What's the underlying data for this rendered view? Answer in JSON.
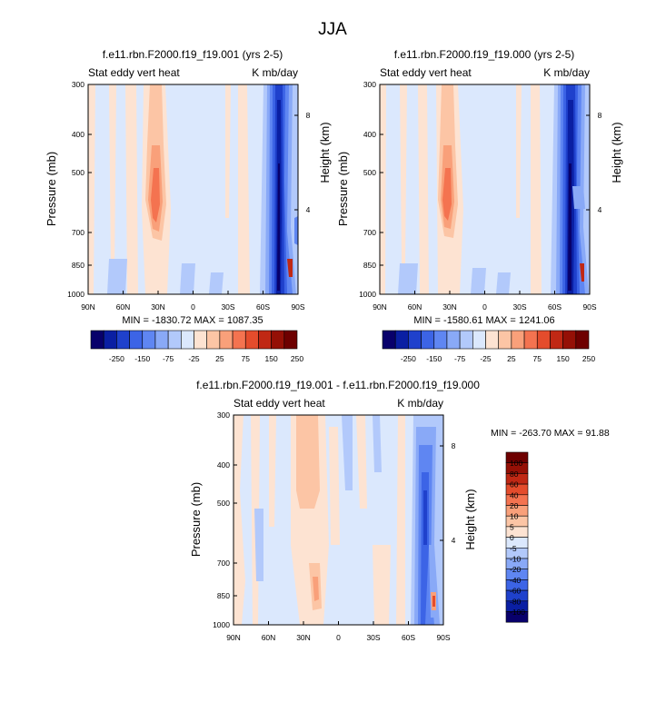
{
  "figure": {
    "title": "JJA"
  },
  "colors": {
    "abs_palette": [
      "#08006b",
      "#0a1fa3",
      "#1f41cc",
      "#3c64e6",
      "#5f86f2",
      "#89a9f7",
      "#b2c9fb",
      "#dbe8fd",
      "#fde3d2",
      "#fcc5a5",
      "#f9a07a",
      "#f47350",
      "#e44c2c",
      "#c02814",
      "#951006",
      "#6e0000"
    ],
    "diff_palette": [
      "#08006b",
      "#0a1fa3",
      "#1f41cc",
      "#3c64e6",
      "#5f86f2",
      "#89a9f7",
      "#b2c9fb",
      "#dbe8fd",
      "#fde3d2",
      "#fcc5a5",
      "#f9a07a",
      "#f47350",
      "#e44c2c",
      "#c02814",
      "#951006",
      "#6e0000"
    ]
  },
  "chart_data": [
    {
      "type": "heatmap",
      "title": "f.e11.rbn.F2000.f19_f19.001 (yrs 2-5)",
      "left_label": "Stat eddy vert heat",
      "right_label": "K mb/day",
      "xlabel": "",
      "ylabel": "Pressure (mb)",
      "y2label": "Height (km)",
      "x_ticks": [
        "90N",
        "60N",
        "30N",
        "0",
        "30S",
        "60S",
        "90S"
      ],
      "y_ticks": [
        "300",
        "400",
        "500",
        "700",
        "850",
        "1000"
      ],
      "y2_ticks": [
        "8",
        "4"
      ],
      "stats": "MIN = -1830.72  MAX = 1087.35",
      "colorbar_labels": [
        "-250",
        "-150",
        "-75",
        "-25",
        "25",
        "75",
        "150",
        "250"
      ]
    },
    {
      "type": "heatmap",
      "title": "f.e11.rbn.F2000.f19_f19.000 (yrs 2-5)",
      "left_label": "Stat eddy vert heat",
      "right_label": "K mb/day",
      "xlabel": "",
      "ylabel": "Pressure (mb)",
      "y2label": "Height (km)",
      "x_ticks": [
        "90N",
        "60N",
        "30N",
        "0",
        "30S",
        "60S",
        "90S"
      ],
      "y_ticks": [
        "300",
        "400",
        "500",
        "700",
        "850",
        "1000"
      ],
      "y2_ticks": [
        "8",
        "4"
      ],
      "stats": "MIN = -1580.61  MAX = 1241.06",
      "colorbar_labels": [
        "-250",
        "-150",
        "-75",
        "-25",
        "25",
        "75",
        "150",
        "250"
      ]
    },
    {
      "type": "heatmap",
      "title": "f.e11.rbn.F2000.f19_f19.001 - f.e11.rbn.F2000.f19_f19.000",
      "left_label": "Stat eddy vert heat",
      "right_label": "K mb/day",
      "xlabel": "",
      "ylabel": "Pressure (mb)",
      "y2label": "Height (km)",
      "x_ticks": [
        "90N",
        "60N",
        "30N",
        "0",
        "30S",
        "60S",
        "90S"
      ],
      "y_ticks": [
        "300",
        "400",
        "500",
        "700",
        "850",
        "1000"
      ],
      "y2_ticks": [
        "8",
        "4"
      ],
      "stats": "MIN = -263.70  MAX =  91.88",
      "colorbar_labels": [
        "100",
        "80",
        "60",
        "40",
        "20",
        "10",
        "5",
        "0",
        "-5",
        "-10",
        "-20",
        "-40",
        "-60",
        "-80",
        "-100"
      ]
    }
  ]
}
